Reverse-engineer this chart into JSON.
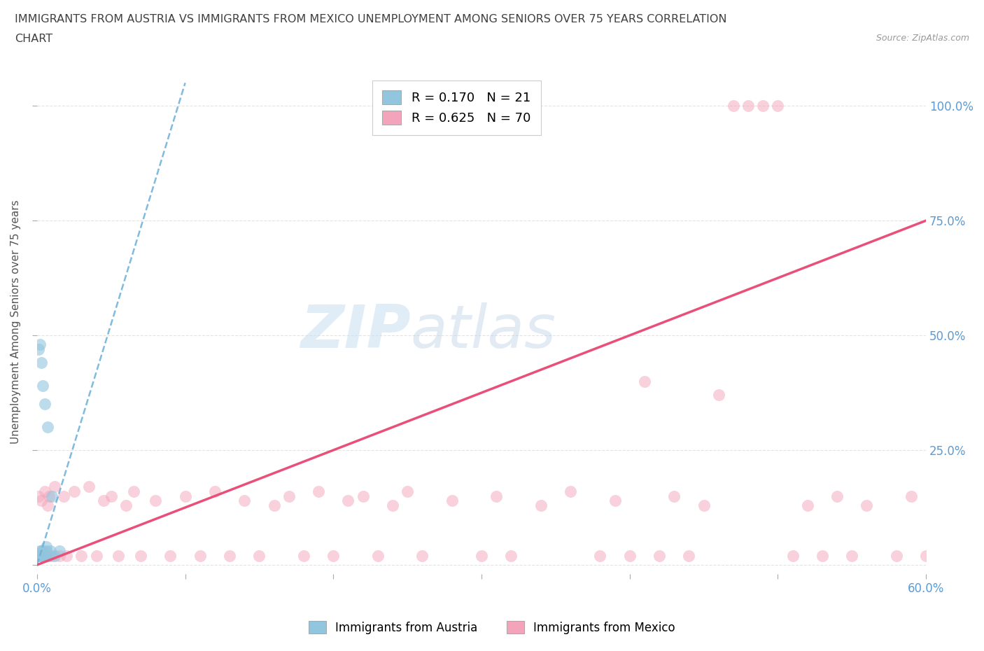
{
  "title_line1": "IMMIGRANTS FROM AUSTRIA VS IMMIGRANTS FROM MEXICO UNEMPLOYMENT AMONG SENIORS OVER 75 YEARS CORRELATION",
  "title_line2": "CHART",
  "source": "Source: ZipAtlas.com",
  "legend_austria": "Immigrants from Austria",
  "legend_mexico": "Immigrants from Mexico",
  "ylabel": "Unemployment Among Seniors over 75 years",
  "xlim": [
    0,
    0.6
  ],
  "ylim": [
    -0.02,
    1.08
  ],
  "austria_R": 0.17,
  "austria_N": 21,
  "mexico_R": 0.625,
  "mexico_N": 70,
  "austria_color": "#92c5de",
  "mexico_color": "#f4a4ba",
  "austria_line_color": "#6ab0d8",
  "mexico_line_color": "#e8507a",
  "grid_color": "#dddddd",
  "tick_color": "#5b9bd5",
  "title_color": "#404040",
  "x_ticks": [
    0.0,
    0.1,
    0.2,
    0.3,
    0.4,
    0.5,
    0.6
  ],
  "x_tick_labels_show": [
    "0.0%",
    "",
    "",
    "",
    "",
    "",
    "60.0%"
  ],
  "y_ticks": [
    0.0,
    0.25,
    0.5,
    0.75,
    1.0
  ],
  "y_tick_labels_right": [
    "",
    "25.0%",
    "50.0%",
    "75.0%",
    "100.0%"
  ],
  "austria_x": [
    0.001,
    0.001,
    0.002,
    0.002,
    0.002,
    0.003,
    0.003,
    0.003,
    0.004,
    0.004,
    0.005,
    0.005,
    0.006,
    0.006,
    0.006,
    0.007,
    0.008,
    0.009,
    0.01,
    0.012,
    0.015
  ],
  "austria_y": [
    0.47,
    0.02,
    0.48,
    0.03,
    0.02,
    0.44,
    0.03,
    0.02,
    0.39,
    0.03,
    0.35,
    0.02,
    0.03,
    0.04,
    0.02,
    0.3,
    0.02,
    0.03,
    0.15,
    0.02,
    0.03
  ],
  "austria_line_x": [
    0.0,
    0.1
  ],
  "austria_line_y": [
    0.0,
    1.05
  ],
  "mexico_x": [
    0.001,
    0.002,
    0.003,
    0.004,
    0.005,
    0.006,
    0.007,
    0.008,
    0.01,
    0.012,
    0.015,
    0.018,
    0.02,
    0.025,
    0.03,
    0.035,
    0.04,
    0.045,
    0.05,
    0.055,
    0.06,
    0.065,
    0.07,
    0.08,
    0.09,
    0.1,
    0.11,
    0.12,
    0.13,
    0.14,
    0.15,
    0.16,
    0.17,
    0.18,
    0.19,
    0.2,
    0.21,
    0.22,
    0.23,
    0.24,
    0.25,
    0.26,
    0.28,
    0.3,
    0.31,
    0.32,
    0.34,
    0.36,
    0.38,
    0.39,
    0.4,
    0.41,
    0.42,
    0.43,
    0.44,
    0.45,
    0.46,
    0.47,
    0.48,
    0.49,
    0.5,
    0.51,
    0.52,
    0.53,
    0.54,
    0.55,
    0.56,
    0.58,
    0.59,
    0.6
  ],
  "mexico_y": [
    0.15,
    0.02,
    0.14,
    0.02,
    0.16,
    0.02,
    0.13,
    0.15,
    0.02,
    0.17,
    0.02,
    0.15,
    0.02,
    0.16,
    0.02,
    0.17,
    0.02,
    0.14,
    0.15,
    0.02,
    0.13,
    0.16,
    0.02,
    0.14,
    0.02,
    0.15,
    0.02,
    0.16,
    0.02,
    0.14,
    0.02,
    0.13,
    0.15,
    0.02,
    0.16,
    0.02,
    0.14,
    0.15,
    0.02,
    0.13,
    0.16,
    0.02,
    0.14,
    0.02,
    0.15,
    0.02,
    0.13,
    0.16,
    0.02,
    0.14,
    0.02,
    0.4,
    0.02,
    0.15,
    0.02,
    0.13,
    0.37,
    1.0,
    1.0,
    1.0,
    1.0,
    0.02,
    0.13,
    0.02,
    0.15,
    0.02,
    0.13,
    0.02,
    0.15,
    0.02
  ],
  "mexico_line_x": [
    0.0,
    0.6
  ],
  "mexico_line_y": [
    0.0,
    0.75
  ]
}
